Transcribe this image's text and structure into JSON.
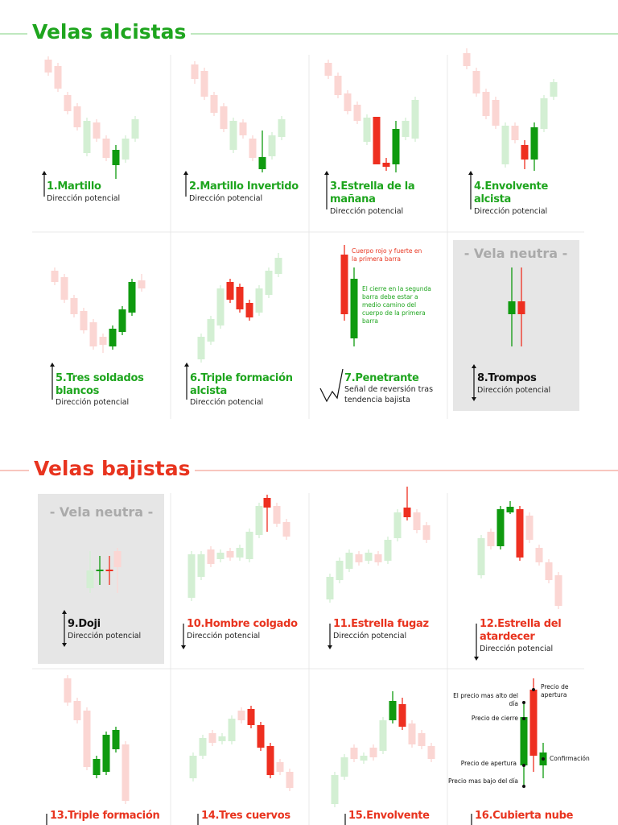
{
  "sections": [
    {
      "title": "Velas alcistas",
      "cells": [
        {
          "title": "1.Martillo",
          "subtitle": "Dirección potencial"
        },
        {
          "title": "2.Martillo Invertido",
          "subtitle": "Dirección potencial"
        },
        {
          "title": "3.Estrella de la mañana",
          "subtitle": "Dirección potencial"
        },
        {
          "title": "4.Envolvente alcista",
          "subtitle": "Dirección potencial"
        },
        {
          "title": "5.Tres soldados blancos",
          "subtitle": "Dirección potencial"
        },
        {
          "title": "6.Triple formación alcista",
          "subtitle": "Dirección potencial"
        },
        {
          "title": "7.Penetrante",
          "subtitle": "Señal de reversión tras tendencia bajista",
          "notes": [
            "Cuerpo rojo y fuerte en la primera barra",
            "El cierre en la segunda barra debe estar a medio camino del cuerpo de la primera barra"
          ]
        },
        {
          "label": "- Vela neutra -",
          "title": "8.Trompos",
          "subtitle": "Dirección potencial"
        }
      ]
    },
    {
      "title": "Velas bajistas",
      "cells": [
        {
          "label": "- Vela neutra -",
          "title": "9.Doji",
          "subtitle": "Dirección potencial"
        },
        {
          "title": "10.Hombre colgado",
          "subtitle": "Dirección potencial"
        },
        {
          "title": "11.Estrella fugaz",
          "subtitle": "Dirección potencial"
        },
        {
          "title": "12.Estrella del atardecer",
          "subtitle": "Dirección potencial"
        },
        {
          "title": "13.Triple formación"
        },
        {
          "title": "14.Tres cuervos"
        },
        {
          "title": "15.Envolvente"
        },
        {
          "title": "16.Cubierta nube",
          "notes": [
            "Precio de apertura",
            "El precio mas alto del día",
            "Precio de cierre",
            "Precio de apertura",
            "Precio mas bajo del día",
            "Confirmación"
          ]
        }
      ]
    }
  ]
}
